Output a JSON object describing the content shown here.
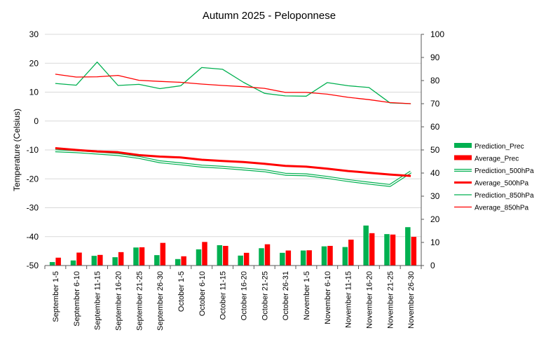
{
  "chart_data": {
    "type": "bar",
    "title": "Autumn 2025 - Peloponnese",
    "ylabel": "Temperature (Celsius)",
    "ylabel_right": "",
    "ylim": [
      -50,
      30
    ],
    "ylim_right": [
      0,
      100
    ],
    "yticks_left": [
      "30",
      "20",
      "10",
      "0",
      "-10",
      "-20",
      "-30",
      "-40",
      "-50"
    ],
    "yticks_right": [
      "100",
      "90",
      "80",
      "70",
      "60",
      "50",
      "40",
      "30",
      "20",
      "10",
      "0"
    ],
    "grid": true,
    "legend_position": "right",
    "categories": [
      "September 1-5",
      "September 6-10",
      "September 11-15",
      "September 16-20",
      "September 21-25",
      "September 26-30",
      "October 1-5",
      "October 6-10",
      "October 11-15",
      "October 16-20",
      "October 21-25",
      "October 26-31",
      "November 1-5",
      "November 6-10",
      "November 11-15",
      "November 16-20",
      "November 21-25",
      "November 26-30"
    ],
    "series": [
      {
        "name": "Prediction_Prec",
        "type": "bar",
        "axis": "right",
        "color": "#00b050",
        "values": [
          1.5,
          2.2,
          4.2,
          3.6,
          7.8,
          4.5,
          2.8,
          7.0,
          8.8,
          4.3,
          7.5,
          5.5,
          6.5,
          8.3,
          8.0,
          17.3,
          13.6,
          16.6
        ]
      },
      {
        "name": "Average_Prec",
        "type": "bar",
        "axis": "right",
        "color": "#ff0000",
        "values": [
          3.4,
          5.6,
          4.6,
          5.8,
          7.9,
          9.8,
          4.0,
          10.2,
          8.5,
          5.5,
          9.2,
          6.5,
          6.6,
          8.5,
          11.2,
          14.0,
          13.4,
          12.4
        ]
      },
      {
        "name": "Prediction_500hPa",
        "type": "line",
        "style": "double",
        "axis": "left",
        "color": "#00b050",
        "values": [
          -10.3,
          -10.6,
          -11.1,
          -11.6,
          -12.6,
          -14.1,
          -14.8,
          -15.6,
          -16.0,
          -16.6,
          -17.2,
          -18.4,
          -18.6,
          -19.5,
          -20.6,
          -21.5,
          -22.3,
          -17.6
        ]
      },
      {
        "name": "Average_500hPa",
        "type": "line",
        "axis": "left",
        "color": "#ff0000",
        "values": [
          -9.4,
          -10.0,
          -10.5,
          -10.8,
          -11.8,
          -12.3,
          -12.6,
          -13.4,
          -13.8,
          -14.2,
          -14.8,
          -15.5,
          -15.8,
          -16.5,
          -17.3,
          -17.9,
          -18.5,
          -19.0
        ]
      },
      {
        "name": "Prediction_850hPa",
        "type": "line",
        "axis": "left",
        "color": "#00b050",
        "values": [
          13.0,
          12.4,
          20.4,
          12.3,
          12.7,
          11.2,
          12.2,
          18.5,
          17.9,
          13.4,
          9.6,
          8.7,
          8.6,
          13.3,
          12.2,
          11.6,
          6.3,
          6.0
        ]
      },
      {
        "name": "Average_850hPa",
        "type": "line",
        "axis": "left",
        "color": "#ff0000",
        "values": [
          16.2,
          15.2,
          15.3,
          15.8,
          14.1,
          13.7,
          13.4,
          12.8,
          12.3,
          11.9,
          11.3,
          9.9,
          9.9,
          9.3,
          8.2,
          7.4,
          6.4,
          6.0
        ]
      }
    ]
  }
}
